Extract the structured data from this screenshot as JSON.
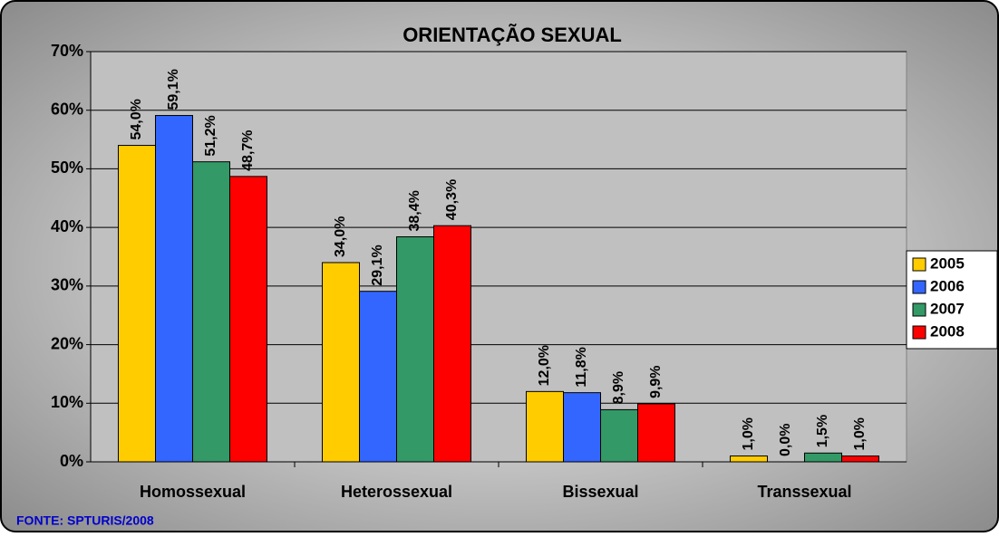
{
  "chart_data": {
    "type": "bar",
    "title": "ORIENTAÇÃO SEXUAL",
    "source": "FONTE: SPTURIS/2008",
    "categories": [
      "Homossexual",
      "Heterossexual",
      "Bissexual",
      "Transsexual"
    ],
    "series": [
      {
        "name": "2005",
        "color": "#ffcc00",
        "values": [
          54.0,
          34.0,
          12.0,
          1.0
        ],
        "value_labels": [
          "54,0%",
          "34,0%",
          "12,0%",
          "1,0%"
        ]
      },
      {
        "name": "2006",
        "color": "#3366ff",
        "values": [
          59.1,
          29.1,
          11.8,
          0.0
        ],
        "value_labels": [
          "59,1%",
          "29,1%",
          "11,8%",
          "0,0%"
        ]
      },
      {
        "name": "2007",
        "color": "#339966",
        "values": [
          51.2,
          38.4,
          8.9,
          1.5
        ],
        "value_labels": [
          "51,2%",
          "38,4%",
          "8,9%",
          "1,5%"
        ]
      },
      {
        "name": "2008",
        "color": "#ff0000",
        "values": [
          48.7,
          40.3,
          9.9,
          1.0
        ],
        "value_labels": [
          "48,7%",
          "40,3%",
          "9,9%",
          "1,0%"
        ]
      }
    ],
    "ylim": [
      0,
      70
    ],
    "yticks": [
      {
        "value": 0,
        "label": "0%"
      },
      {
        "value": 10,
        "label": "10%"
      },
      {
        "value": 20,
        "label": "20%"
      },
      {
        "value": 30,
        "label": "30%"
      },
      {
        "value": 40,
        "label": "40%"
      },
      {
        "value": 50,
        "label": "50%"
      },
      {
        "value": 60,
        "label": "60%"
      },
      {
        "value": 70,
        "label": "70%"
      }
    ],
    "grid": true,
    "legend": "right"
  }
}
